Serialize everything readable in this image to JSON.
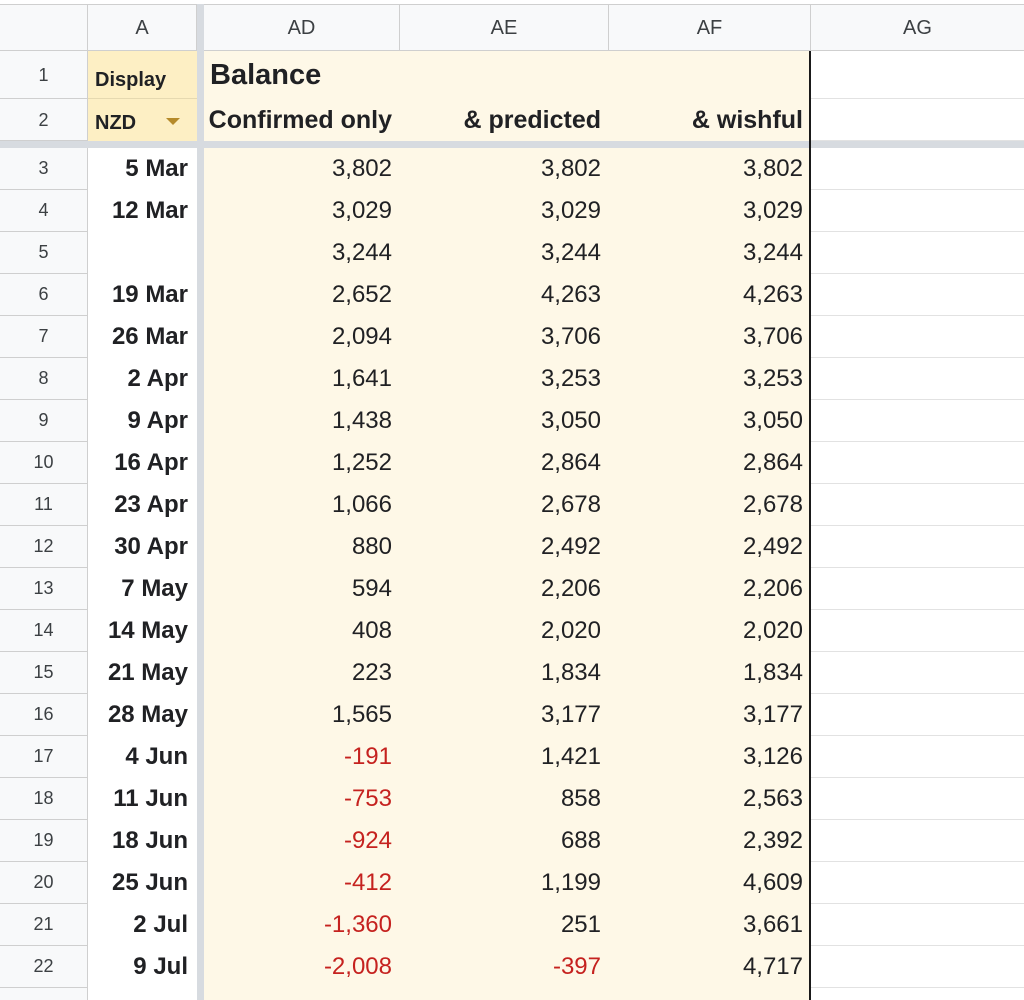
{
  "columns": {
    "a": "A",
    "ad": "AD",
    "ae": "AE",
    "af": "AF",
    "ag": "AG"
  },
  "header": {
    "display_label": "Display",
    "currency_value": "NZD",
    "balance_title": "Balance",
    "col_confirmed": "Confirmed only",
    "col_predicted": "& predicted",
    "col_wishful": "& wishful"
  },
  "row_numbers": [
    "1",
    "2",
    "3",
    "4",
    "5",
    "6",
    "7",
    "8",
    "9",
    "10",
    "11",
    "12",
    "13",
    "14",
    "15",
    "16",
    "17",
    "18",
    "19",
    "20",
    "21",
    "22"
  ],
  "rows": [
    {
      "date": "5 Mar",
      "confirmed": "3,802",
      "predicted": "3,802",
      "wishful": "3,802"
    },
    {
      "date": "12 Mar",
      "confirmed": "3,029",
      "predicted": "3,029",
      "wishful": "3,029"
    },
    {
      "date": "",
      "confirmed": "3,244",
      "predicted": "3,244",
      "wishful": "3,244"
    },
    {
      "date": "19 Mar",
      "confirmed": "2,652",
      "predicted": "4,263",
      "wishful": "4,263"
    },
    {
      "date": "26 Mar",
      "confirmed": "2,094",
      "predicted": "3,706",
      "wishful": "3,706"
    },
    {
      "date": "2 Apr",
      "confirmed": "1,641",
      "predicted": "3,253",
      "wishful": "3,253"
    },
    {
      "date": "9 Apr",
      "confirmed": "1,438",
      "predicted": "3,050",
      "wishful": "3,050"
    },
    {
      "date": "16 Apr",
      "confirmed": "1,252",
      "predicted": "2,864",
      "wishful": "2,864"
    },
    {
      "date": "23 Apr",
      "confirmed": "1,066",
      "predicted": "2,678",
      "wishful": "2,678"
    },
    {
      "date": "30 Apr",
      "confirmed": "880",
      "predicted": "2,492",
      "wishful": "2,492"
    },
    {
      "date": "7 May",
      "confirmed": "594",
      "predicted": "2,206",
      "wishful": "2,206"
    },
    {
      "date": "14 May",
      "confirmed": "408",
      "predicted": "2,020",
      "wishful": "2,020"
    },
    {
      "date": "21 May",
      "confirmed": "223",
      "predicted": "1,834",
      "wishful": "1,834"
    },
    {
      "date": "28 May",
      "confirmed": "1,565",
      "predicted": "3,177",
      "wishful": "3,177"
    },
    {
      "date": "4 Jun",
      "confirmed": "-191",
      "predicted": "1,421",
      "wishful": "3,126"
    },
    {
      "date": "11 Jun",
      "confirmed": "-753",
      "predicted": "858",
      "wishful": "2,563"
    },
    {
      "date": "18 Jun",
      "confirmed": "-924",
      "predicted": "688",
      "wishful": "2,392"
    },
    {
      "date": "25 Jun",
      "confirmed": "-412",
      "predicted": "1,199",
      "wishful": "4,609"
    },
    {
      "date": "2 Jul",
      "confirmed": "-1,360",
      "predicted": "251",
      "wishful": "3,661"
    },
    {
      "date": "9 Jul",
      "confirmed": "-2,008",
      "predicted": "-397",
      "wishful": "4,717"
    }
  ],
  "colors": {
    "negative": "#c5221f",
    "highlight_fill": "#fef8e7",
    "display_fill": "#fdefc4",
    "dropdown_arrow": "#b58a2a"
  },
  "icons": {
    "currency_dropdown": "triangle-down-icon"
  }
}
